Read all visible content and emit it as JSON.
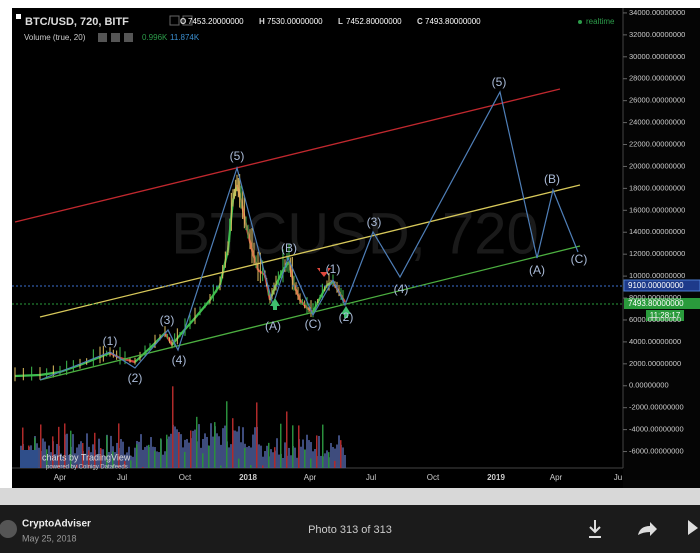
{
  "header": {
    "symbol": "BTC/USD, 720, BITF",
    "ohlc": [
      {
        "key": "O",
        "value": "7453.20000000"
      },
      {
        "key": "H",
        "value": "7530.00000000"
      },
      {
        "key": "L",
        "value": "7452.80000000"
      },
      {
        "key": "C",
        "value": "7493.80000000"
      }
    ],
    "volume_label": "Volume (true, 20)",
    "volume_values": [
      "0.996K",
      "11.874K"
    ],
    "realtime": "realtime"
  },
  "chart": {
    "watermark": "BTCUSD, 720",
    "price_axis": {
      "ylim": [
        -7500,
        34450
      ],
      "ticks": [
        {
          "value": 34000,
          "label": "34000.00000000"
        },
        {
          "value": 32000,
          "label": "32000.00000000"
        },
        {
          "value": 30000,
          "label": "30000.00000000"
        },
        {
          "value": 28000,
          "label": "28000.00000000"
        },
        {
          "value": 26000,
          "label": "26000.00000000"
        },
        {
          "value": 24000,
          "label": "24000.00000000"
        },
        {
          "value": 22000,
          "label": "22000.00000000"
        },
        {
          "value": 20000,
          "label": "20000.00000000"
        },
        {
          "value": 18000,
          "label": "18000.00000000"
        },
        {
          "value": 16000,
          "label": "16000.00000000"
        },
        {
          "value": 14000,
          "label": "14000.00000000"
        },
        {
          "value": 12000,
          "label": "12000.00000000"
        },
        {
          "value": 10000,
          "label": "10000.00000000"
        },
        {
          "value": 8000,
          "label": "8000.00000000"
        },
        {
          "value": 6000,
          "label": "6000.00000000"
        },
        {
          "value": 4000,
          "label": "4000.00000000"
        },
        {
          "value": 2000,
          "label": "2000.00000000"
        },
        {
          "value": 0,
          "label": "0.00000000"
        },
        {
          "value": -2000,
          "label": "-2000.00000000"
        },
        {
          "value": -4000,
          "label": "-4000.00000000"
        },
        {
          "value": -6000,
          "label": "-6000.00000000"
        }
      ]
    },
    "last_price_labels": {
      "alert": "9100.00000000",
      "price": "7493.80000000",
      "countdown": "11:28:17"
    },
    "time_axis": [
      "Apr",
      "Jul",
      "Oct",
      "2018",
      "Apr",
      "Jul",
      "Oct",
      "2019",
      "Apr",
      "Ju"
    ],
    "wave_labels": [
      "(1)",
      "(2)",
      "(3)",
      "(4)",
      "(5)",
      "(A)",
      "(B)",
      "(C)",
      "(1)",
      "(2)",
      "(3)",
      "(4)",
      "(5)",
      "(A)",
      "(B)",
      "(C)"
    ],
    "logo": {
      "text": "charts by TradingView",
      "subtext": "powered by Coinigy Datafeeds"
    }
  },
  "footer": {
    "author": "CryptoAdviser",
    "date": "May 25, 2018",
    "counter": "Photo 313 of 313"
  }
}
